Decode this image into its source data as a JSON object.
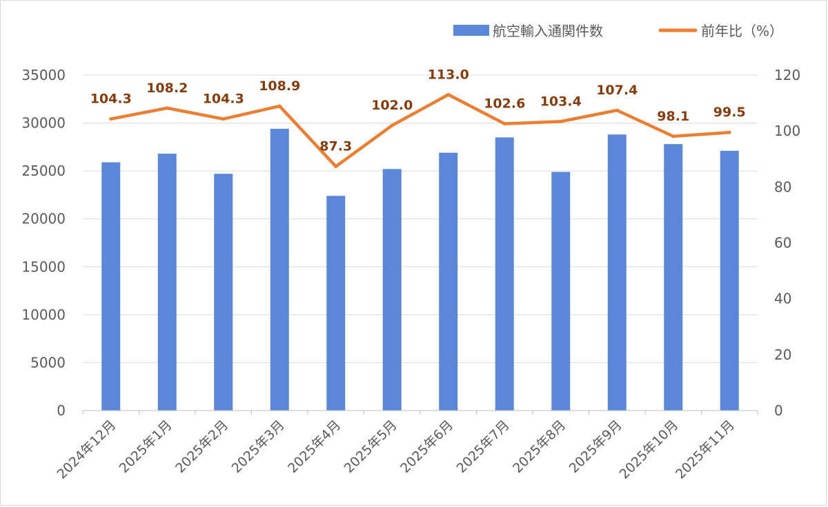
{
  "chart_data": {
    "type": "bar+line",
    "categories": [
      "2024年12月",
      "2025年1月",
      "2025年2月",
      "2025年3月",
      "2025年4月",
      "2025年5月",
      "2025年6月",
      "2025年7月",
      "2025年8月",
      "2025年9月",
      "2025年10月",
      "2025年11月"
    ],
    "series": [
      {
        "name": "航空輸入通関件数",
        "type": "bar",
        "axis": "left",
        "color": "#5b87d8",
        "values": [
          25900,
          26800,
          24700,
          29400,
          22400,
          25200,
          26900,
          28500,
          24900,
          28800,
          27800,
          27100
        ]
      },
      {
        "name": "前年比（%）",
        "type": "line",
        "axis": "right",
        "color": "#ed7d31",
        "values": [
          104.3,
          108.2,
          104.3,
          108.9,
          87.3,
          102.0,
          113.0,
          102.6,
          103.4,
          107.4,
          98.1,
          99.5
        ],
        "data_labels": [
          "104.3",
          "108.2",
          "104.3",
          "108.9",
          "87.3",
          "102.0",
          "113.0",
          "102.6",
          "103.4",
          "107.4",
          "98.1",
          "99.5"
        ],
        "label_color": "#843c0c"
      }
    ],
    "y_left": {
      "lim": [
        0,
        35000
      ],
      "ticks": [
        "0",
        "5000",
        "10000",
        "15000",
        "20000",
        "25000",
        "30000",
        "35000"
      ]
    },
    "y_right": {
      "lim": [
        0,
        120
      ],
      "ticks": [
        "0",
        "20",
        "40",
        "60",
        "80",
        "100",
        "120"
      ]
    },
    "title": "",
    "grid": true,
    "legend_position": "top-right"
  }
}
